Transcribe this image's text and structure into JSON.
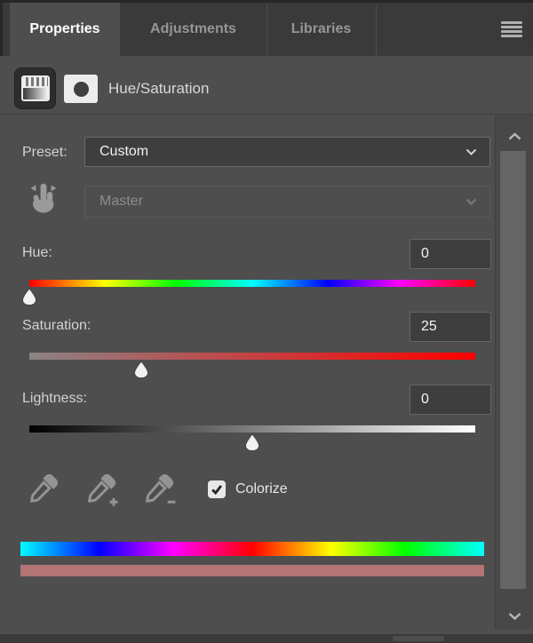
{
  "tabs": {
    "items": [
      {
        "label": "Properties",
        "active": true
      },
      {
        "label": "Adjustments",
        "active": false
      },
      {
        "label": "Libraries",
        "active": false
      }
    ]
  },
  "header": {
    "title": "Hue/Saturation"
  },
  "preset": {
    "label": "Preset:",
    "value": "Custom"
  },
  "channel": {
    "value": "Master",
    "disabled": true
  },
  "sliders": [
    {
      "label": "Hue:",
      "value": "0",
      "handle_percent": 0
    },
    {
      "label": "Saturation:",
      "value": "25",
      "handle_percent": 25
    },
    {
      "label": "Lightness:",
      "value": "0",
      "handle_percent": 50
    }
  ],
  "colorize": {
    "label": "Colorize",
    "checked": true
  },
  "result": {
    "swatch_color": "#b27474"
  },
  "icons": {
    "menu": "hamburger-menu",
    "adjustment": "hue-saturation-adjustment",
    "mask": "layer-mask",
    "targeted": "targeted-adjustment-hand",
    "droppers": [
      "eyedropper",
      "eyedropper-plus",
      "eyedropper-minus"
    ]
  },
  "colors": {
    "panel_bg": "#4e4e4e",
    "tabstrip_bg": "#3a3a3a",
    "field_bg": "#3e3e3e",
    "active_tab_text": "#ffffff",
    "inactive_tab_text": "#969696"
  }
}
